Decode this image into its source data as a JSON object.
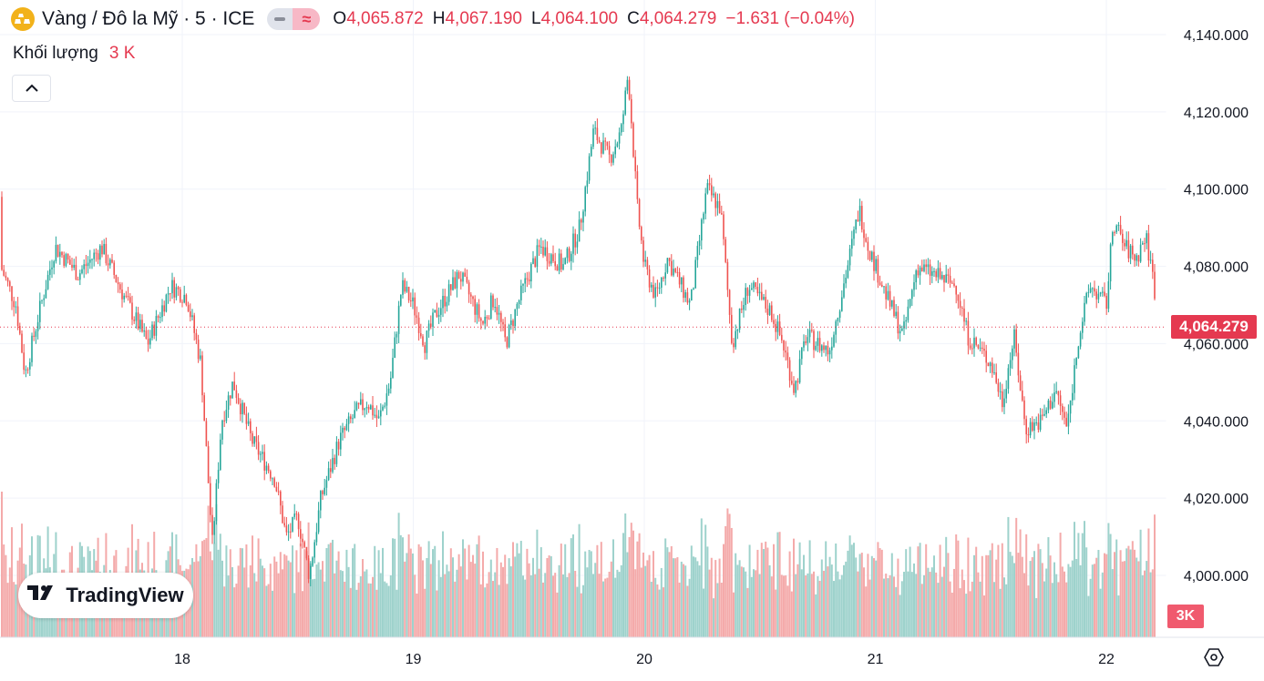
{
  "legend": {
    "symbol_title": "Vàng / Đô la Mỹ · 5 · ICE",
    "mode_icon": "≈",
    "open_label": "O",
    "open": "4,065.872",
    "high_label": "H",
    "high": "4,067.190",
    "low_label": "L",
    "low": "4,064.100",
    "close_label": "C",
    "close": "4,064.279",
    "change": "−1.631 (−0.04%)"
  },
  "volume_legend": {
    "label": "Khối lượng",
    "value": "3 K"
  },
  "branding": {
    "text": "TradingView"
  },
  "last_price_label": "4,064.279",
  "volume_label": "3K",
  "colors": {
    "up": "#26a69a",
    "down": "#ef5350",
    "up_volume": "#9ed2cc",
    "down_volume": "#f4aaaa",
    "accent": "#e53950",
    "grid": "#f0f3fa"
  },
  "chart_data": {
    "type": "candlestick",
    "interval": "5",
    "title": "Vàng / Đô la Mỹ · 5 · ICE",
    "xlabel": "",
    "ylabel": "",
    "x_ticks": [
      "18",
      "19",
      "20",
      "21",
      "22"
    ],
    "y_ticks": [
      "4,140.000",
      "4,120.000",
      "4,100.000",
      "4,080.000",
      "4,060.000",
      "4,040.000",
      "4,020.000",
      "4,000.000"
    ],
    "ylim": [
      3984,
      4146
    ],
    "last_price": 4064.279,
    "price_path": [
      [
        17.03,
        4098
      ],
      [
        17.1,
        4090
      ],
      [
        17.2,
        4082
      ],
      [
        17.28,
        4070
      ],
      [
        17.32,
        4052
      ],
      [
        17.38,
        4068
      ],
      [
        17.45,
        4085
      ],
      [
        17.55,
        4078
      ],
      [
        17.65,
        4085
      ],
      [
        17.75,
        4072
      ],
      [
        17.85,
        4060
      ],
      [
        17.95,
        4075
      ],
      [
        18.02,
        4072
      ],
      [
        18.08,
        4055
      ],
      [
        18.13,
        4008
      ],
      [
        18.17,
        4040
      ],
      [
        18.22,
        4050
      ],
      [
        18.3,
        4035
      ],
      [
        18.4,
        4025
      ],
      [
        18.45,
        4010
      ],
      [
        18.5,
        4015
      ],
      [
        18.55,
        4000
      ],
      [
        18.6,
        4020
      ],
      [
        18.68,
        4035
      ],
      [
        18.75,
        4042
      ],
      [
        18.8,
        4045
      ],
      [
        18.85,
        4040
      ],
      [
        18.9,
        4050
      ],
      [
        18.95,
        4075
      ],
      [
        19.0,
        4070
      ],
      [
        19.05,
        4060
      ],
      [
        19.1,
        4068
      ],
      [
        19.2,
        4078
      ],
      [
        19.3,
        4065
      ],
      [
        19.35,
        4072
      ],
      [
        19.4,
        4060
      ],
      [
        19.45,
        4070
      ],
      [
        19.5,
        4078
      ],
      [
        19.55,
        4085
      ],
      [
        19.65,
        4080
      ],
      [
        19.72,
        4090
      ],
      [
        19.78,
        4115
      ],
      [
        19.85,
        4108
      ],
      [
        19.9,
        4115
      ],
      [
        19.93,
        4130
      ],
      [
        19.97,
        4095
      ],
      [
        20.0,
        4080
      ],
      [
        20.05,
        4072
      ],
      [
        20.1,
        4082
      ],
      [
        20.2,
        4070
      ],
      [
        20.27,
        4100
      ],
      [
        20.33,
        4095
      ],
      [
        20.38,
        4060
      ],
      [
        20.45,
        4075
      ],
      [
        20.55,
        4068
      ],
      [
        20.6,
        4060
      ],
      [
        20.65,
        4048
      ],
      [
        20.7,
        4062
      ],
      [
        20.8,
        4058
      ],
      [
        20.88,
        4080
      ],
      [
        20.93,
        4095
      ],
      [
        20.97,
        4085
      ],
      [
        21.05,
        4072
      ],
      [
        21.12,
        4062
      ],
      [
        21.18,
        4080
      ],
      [
        21.25,
        4078
      ],
      [
        21.35,
        4075
      ],
      [
        21.4,
        4062
      ],
      [
        21.5,
        4055
      ],
      [
        21.55,
        4045
      ],
      [
        21.6,
        4062
      ],
      [
        21.65,
        4038
      ],
      [
        21.72,
        4040
      ],
      [
        21.78,
        4048
      ],
      [
        21.83,
        4038
      ],
      [
        21.88,
        4062
      ],
      [
        21.93,
        4075
      ],
      [
        22.0,
        4070
      ],
      [
        22.03,
        4092
      ],
      [
        22.08,
        4085
      ],
      [
        22.13,
        4082
      ],
      [
        22.17,
        4088
      ],
      [
        22.2,
        4078
      ],
      [
        22.23,
        4064
      ]
    ]
  }
}
